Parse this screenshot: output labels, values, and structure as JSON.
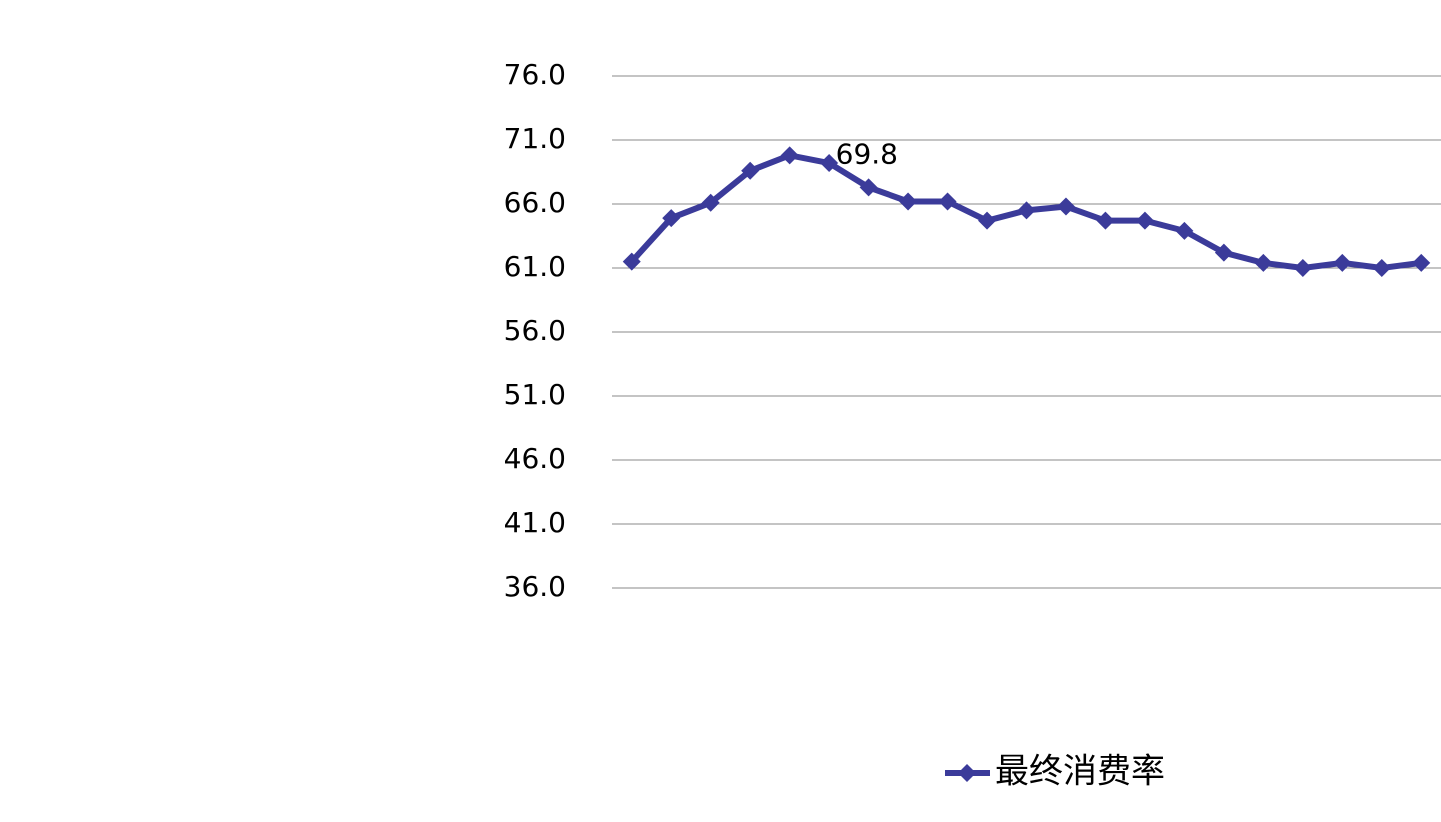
{
  "chart_data": {
    "type": "line",
    "categories": [
      null,
      null,
      null,
      null,
      null,
      null,
      null,
      null,
      null,
      null,
      null,
      null,
      null,
      null,
      null,
      null,
      null,
      null,
      null,
      null,
      null
    ],
    "series": [
      {
        "name": "最终消费率",
        "color": "#3b3b9a",
        "values": [
          61.5,
          64.9,
          66.1,
          68.6,
          69.8,
          69.2,
          67.3,
          66.2,
          66.2,
          64.7,
          65.5,
          65.8,
          64.7,
          64.7,
          63.9,
          62.2,
          61.4,
          61.0,
          61.4,
          61.0,
          61.4
        ],
        "value_labels": [
          null,
          null,
          null,
          null,
          "69.8",
          null,
          null,
          null,
          null,
          null,
          null,
          null,
          null,
          null,
          null,
          null,
          null,
          null,
          null,
          null,
          null
        ]
      }
    ],
    "ylim": [
      36,
      76
    ],
    "yticks": [
      {
        "value": 76,
        "label": "76.0"
      },
      {
        "value": 71,
        "label": "71.0"
      },
      {
        "value": 66,
        "label": "66.0"
      },
      {
        "value": 61,
        "label": "61.0"
      },
      {
        "value": 56,
        "label": "56.0"
      },
      {
        "value": 51,
        "label": "51.0"
      },
      {
        "value": 46,
        "label": "46.0"
      },
      {
        "value": 41,
        "label": "41.0"
      },
      {
        "value": 36,
        "label": "36.0"
      }
    ],
    "grid": true,
    "legend": "bottom"
  }
}
